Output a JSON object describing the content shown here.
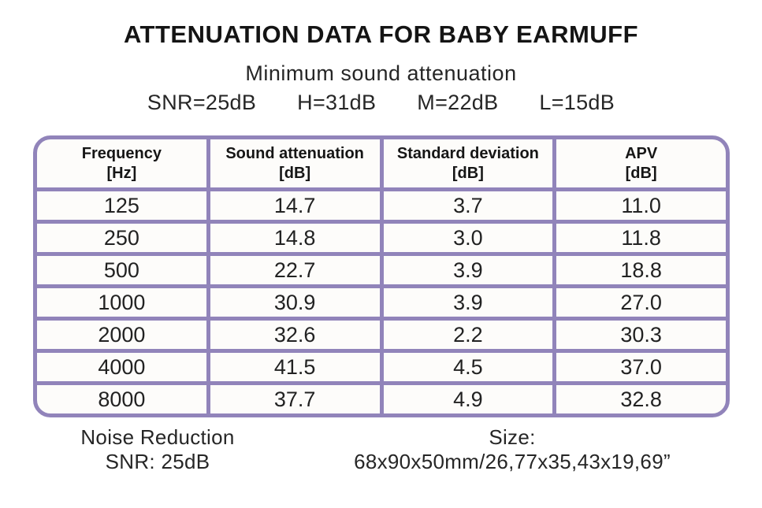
{
  "page": {
    "title": "ATTENUATION DATA FOR BABY EARMUFF",
    "subtitle": "Minimum sound attenuation",
    "ratings": [
      {
        "label": "SNR=25dB"
      },
      {
        "label": "H=31dB"
      },
      {
        "label": "M=22dB"
      },
      {
        "label": "L=15dB"
      }
    ]
  },
  "table": {
    "columns": [
      {
        "title": "Frequency",
        "unit": "[Hz]"
      },
      {
        "title": "Sound attenuation",
        "unit": "[dB]"
      },
      {
        "title": "Standard deviation",
        "unit": "[dB]"
      },
      {
        "title": "APV",
        "unit": "[dB]"
      }
    ],
    "rows": [
      [
        "125",
        "14.7",
        "3.7",
        "11.0"
      ],
      [
        "250",
        "14.8",
        "3.0",
        "11.8"
      ],
      [
        "500",
        "22.7",
        "3.9",
        "18.8"
      ],
      [
        "1000",
        "30.9",
        "3.9",
        "27.0"
      ],
      [
        "2000",
        "32.6",
        "2.2",
        "30.3"
      ],
      [
        "4000",
        "41.5",
        "4.5",
        "37.0"
      ],
      [
        "8000",
        "37.7",
        "4.9",
        "32.8"
      ]
    ]
  },
  "footer": {
    "noise_reduction_line1": "Noise Reduction",
    "noise_reduction_line2": "SNR: 25dB",
    "size_line1": "Size:",
    "size_line2": "68x90x50mm/26,77x35,43x19,69”"
  },
  "colors": {
    "table_border": "#9184ba",
    "cell_background": "#fdfcfa",
    "text": "#1f1f1f",
    "page_background": "#ffffff"
  },
  "chart_data": {
    "type": "table",
    "title": "ATTENUATION DATA FOR BABY EARMUFF",
    "subtitle": "Minimum sound attenuation",
    "summary_values": {
      "SNR": "25dB",
      "H": "31dB",
      "M": "22dB",
      "L": "15dB"
    },
    "columns": [
      "Frequency [Hz]",
      "Sound attenuation [dB]",
      "Standard deviation [dB]",
      "APV [dB]"
    ],
    "frequencies_hz": [
      125,
      250,
      500,
      1000,
      2000,
      4000,
      8000
    ],
    "sound_attenuation_db": [
      14.7,
      14.8,
      22.7,
      30.9,
      32.6,
      41.5,
      37.7
    ],
    "standard_deviation_db": [
      3.7,
      3.0,
      3.9,
      3.9,
      2.2,
      4.5,
      4.9
    ],
    "apv_db": [
      11.0,
      11.8,
      18.8,
      27.0,
      30.3,
      37.0,
      32.8
    ],
    "noise_reduction": "SNR: 25dB",
    "size": "68x90x50mm/26,77x35,43x19,69”"
  }
}
